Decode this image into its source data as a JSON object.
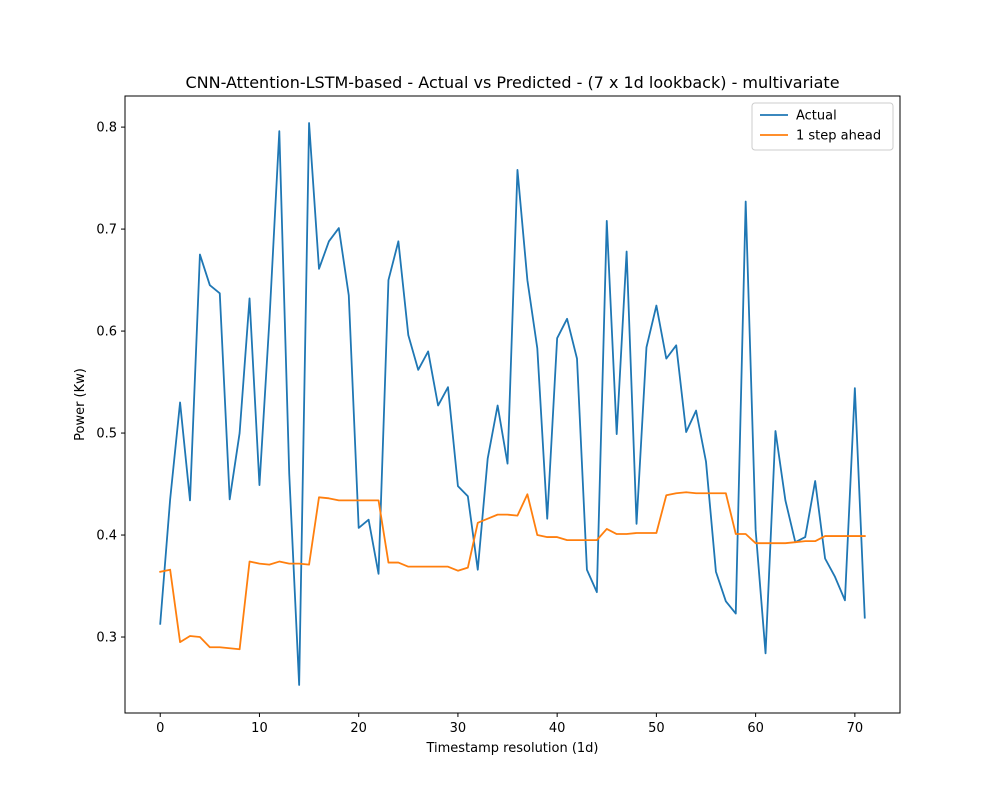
{
  "chart_data": {
    "type": "line",
    "title": "CNN-Attention-LSTM-based - Actual vs Predicted - (7 x 1d lookback) - multivariate",
    "xlabel": "Timestamp resolution (1d)",
    "ylabel": "Power (Kw)",
    "xlim": [
      -3.55,
      74.55
    ],
    "ylim": [
      0.2255,
      0.8305
    ],
    "xticks": [
      0,
      10,
      20,
      30,
      40,
      50,
      60,
      70
    ],
    "xtick_labels": [
      "0",
      "10",
      "20",
      "30",
      "40",
      "50",
      "60",
      "70"
    ],
    "yticks": [
      0.3,
      0.4,
      0.5,
      0.6,
      0.7,
      0.8
    ],
    "ytick_labels": [
      "0.3",
      "0.4",
      "0.5",
      "0.6",
      "0.7",
      "0.8"
    ],
    "grid": false,
    "legend_position": "upper right",
    "series": [
      {
        "name": "Actual",
        "color": "#1f77b4",
        "values": [
          0.313,
          0.435,
          0.53,
          0.434,
          0.675,
          0.645,
          0.637,
          0.435,
          0.5,
          0.632,
          0.449,
          0.61,
          0.796,
          0.46,
          0.253,
          0.804,
          0.661,
          0.688,
          0.701,
          0.635,
          0.407,
          0.415,
          0.362,
          0.65,
          0.688,
          0.596,
          0.562,
          0.58,
          0.527,
          0.545,
          0.448,
          0.438,
          0.366,
          0.475,
          0.527,
          0.47,
          0.758,
          0.65,
          0.583,
          0.416,
          0.593,
          0.612,
          0.573,
          0.366,
          0.344,
          0.708,
          0.499,
          0.678,
          0.411,
          0.584,
          0.625,
          0.573,
          0.586,
          0.501,
          0.522,
          0.472,
          0.364,
          0.335,
          0.323,
          0.727,
          0.405,
          0.284,
          0.502,
          0.434,
          0.393,
          0.398,
          0.453,
          0.377,
          0.359,
          0.336,
          0.544,
          0.319
        ]
      },
      {
        "name": "1 step ahead",
        "color": "#ff7f0e",
        "values": [
          0.364,
          0.366,
          0.295,
          0.301,
          0.3,
          0.29,
          0.29,
          0.289,
          0.288,
          0.374,
          0.372,
          0.371,
          0.374,
          0.372,
          0.372,
          0.371,
          0.437,
          0.436,
          0.434,
          0.434,
          0.434,
          0.434,
          0.434,
          0.373,
          0.373,
          0.369,
          0.369,
          0.369,
          0.369,
          0.369,
          0.365,
          0.368,
          0.412,
          0.416,
          0.42,
          0.42,
          0.419,
          0.44,
          0.4,
          0.398,
          0.398,
          0.395,
          0.395,
          0.395,
          0.395,
          0.406,
          0.401,
          0.401,
          0.402,
          0.402,
          0.402,
          0.439,
          0.441,
          0.442,
          0.441,
          0.441,
          0.441,
          0.441,
          0.401,
          0.401,
          0.392,
          0.392,
          0.392,
          0.392,
          0.393,
          0.394,
          0.394,
          0.399,
          0.399,
          0.399,
          0.399,
          0.399
        ]
      }
    ]
  }
}
